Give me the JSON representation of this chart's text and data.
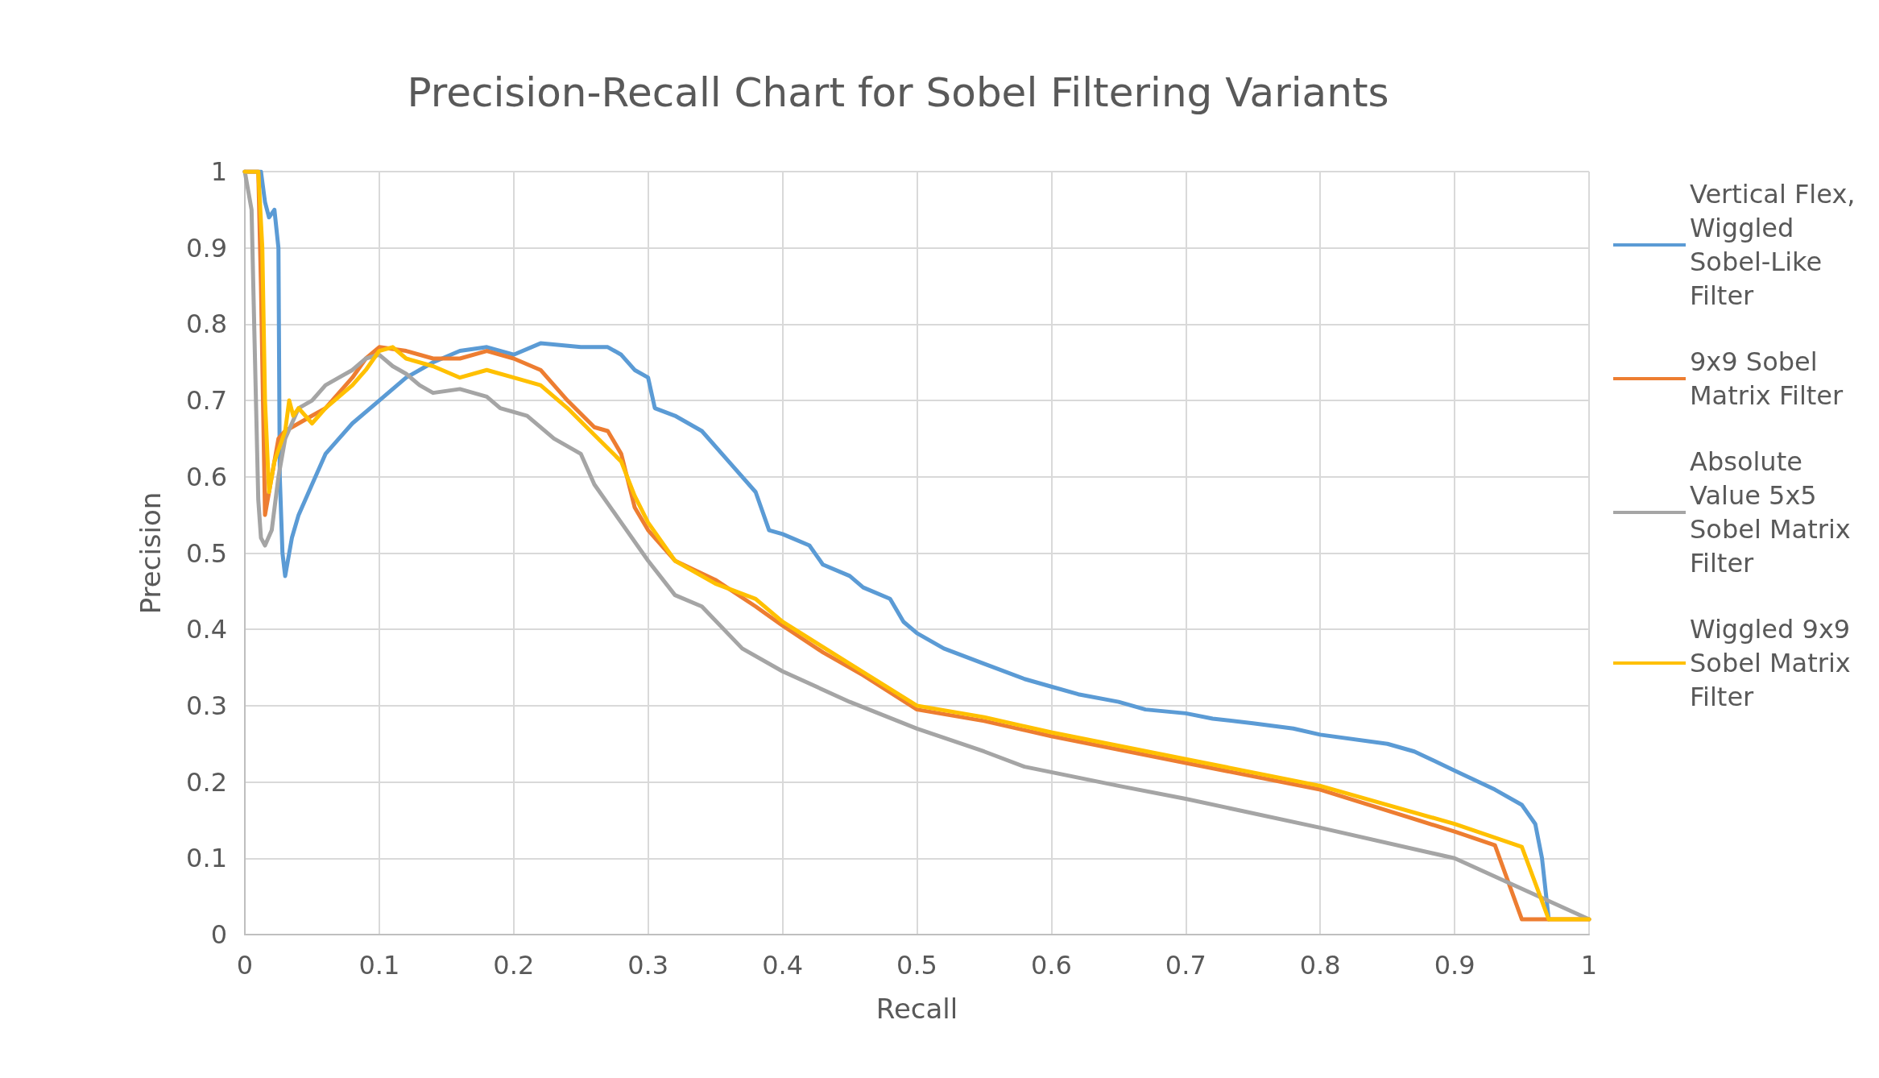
{
  "chart_data": {
    "type": "line",
    "title": "Precision-Recall Chart for Sobel Filtering Variants",
    "xlabel": "Recall",
    "ylabel": "Precision",
    "xlim": [
      0,
      1
    ],
    "xticks": [
      0,
      0.1,
      0.2,
      0.3,
      0.4,
      0.5,
      0.6,
      0.7,
      0.8,
      0.9,
      1
    ],
    "ylim": [
      0,
      1
    ],
    "yticks": [
      0,
      0.1,
      0.2,
      0.3,
      0.4,
      0.5,
      0.6,
      0.7,
      0.8,
      0.9,
      1
    ],
    "grid": true,
    "legend": "right",
    "marker": "none",
    "line_style": "solid",
    "series": [
      {
        "name": "Vertical Flex, Wiggled Sobel-Like Filter",
        "color": "#5b9bd5",
        "x": [
          0,
          0.012,
          0.015,
          0.018,
          0.022,
          0.025,
          0.026,
          0.028,
          0.03,
          0.035,
          0.04,
          0.05,
          0.06,
          0.07,
          0.08,
          0.1,
          0.12,
          0.14,
          0.16,
          0.18,
          0.2,
          0.22,
          0.25,
          0.27,
          0.28,
          0.29,
          0.3,
          0.305,
          0.32,
          0.34,
          0.36,
          0.38,
          0.39,
          0.4,
          0.42,
          0.43,
          0.45,
          0.46,
          0.48,
          0.49,
          0.5,
          0.52,
          0.55,
          0.58,
          0.6,
          0.62,
          0.65,
          0.67,
          0.7,
          0.72,
          0.75,
          0.78,
          0.8,
          0.85,
          0.87,
          0.9,
          0.93,
          0.95,
          0.96,
          0.965,
          0.97
        ],
        "values": [
          1,
          1,
          0.96,
          0.94,
          0.95,
          0.9,
          0.6,
          0.5,
          0.47,
          0.52,
          0.55,
          0.59,
          0.63,
          0.65,
          0.67,
          0.7,
          0.73,
          0.75,
          0.765,
          0.77,
          0.76,
          0.775,
          0.77,
          0.77,
          0.76,
          0.74,
          0.73,
          0.69,
          0.68,
          0.66,
          0.62,
          0.58,
          0.53,
          0.525,
          0.51,
          0.485,
          0.47,
          0.455,
          0.44,
          0.41,
          0.395,
          0.375,
          0.355,
          0.335,
          0.325,
          0.315,
          0.305,
          0.295,
          0.29,
          0.283,
          0.277,
          0.27,
          0.262,
          0.25,
          0.24,
          0.215,
          0.19,
          0.17,
          0.145,
          0.1,
          0.02
        ]
      },
      {
        "name": "9x9 Sobel Matrix Filter",
        "color": "#ed7d31",
        "x": [
          0,
          0.01,
          0.012,
          0.015,
          0.02,
          0.025,
          0.03,
          0.04,
          0.05,
          0.06,
          0.07,
          0.08,
          0.09,
          0.1,
          0.12,
          0.14,
          0.16,
          0.18,
          0.2,
          0.22,
          0.24,
          0.26,
          0.27,
          0.28,
          0.29,
          0.3,
          0.32,
          0.35,
          0.38,
          0.4,
          0.43,
          0.46,
          0.5,
          0.55,
          0.6,
          0.7,
          0.8,
          0.9,
          0.93,
          0.95,
          0.97,
          1
        ],
        "values": [
          1,
          1,
          0.85,
          0.55,
          0.6,
          0.65,
          0.66,
          0.67,
          0.68,
          0.69,
          0.71,
          0.73,
          0.755,
          0.77,
          0.765,
          0.755,
          0.755,
          0.765,
          0.755,
          0.74,
          0.7,
          0.665,
          0.66,
          0.63,
          0.56,
          0.53,
          0.49,
          0.465,
          0.43,
          0.405,
          0.37,
          0.34,
          0.295,
          0.28,
          0.26,
          0.225,
          0.19,
          0.135,
          0.117,
          0.02,
          0.02,
          0.02
        ]
      },
      {
        "name": "Absolute Value 5x5 Sobel Matrix Filter",
        "color": "#a5a5a5",
        "x": [
          0,
          0.005,
          0.008,
          0.01,
          0.012,
          0.015,
          0.02,
          0.025,
          0.03,
          0.04,
          0.05,
          0.06,
          0.07,
          0.08,
          0.09,
          0.1,
          0.11,
          0.12,
          0.13,
          0.14,
          0.16,
          0.18,
          0.19,
          0.21,
          0.23,
          0.25,
          0.26,
          0.28,
          0.3,
          0.32,
          0.34,
          0.37,
          0.4,
          0.45,
          0.5,
          0.55,
          0.58,
          0.65,
          0.7,
          0.8,
          0.9,
          1
        ],
        "values": [
          1,
          0.95,
          0.72,
          0.57,
          0.52,
          0.51,
          0.53,
          0.6,
          0.65,
          0.69,
          0.7,
          0.72,
          0.73,
          0.74,
          0.755,
          0.76,
          0.745,
          0.735,
          0.72,
          0.71,
          0.715,
          0.705,
          0.69,
          0.68,
          0.65,
          0.63,
          0.59,
          0.54,
          0.49,
          0.445,
          0.43,
          0.375,
          0.345,
          0.305,
          0.27,
          0.24,
          0.22,
          0.195,
          0.178,
          0.14,
          0.1,
          0.02
        ]
      },
      {
        "name": "Wiggled 9x9 Sobel Matrix Filter",
        "color": "#ffc000",
        "x": [
          0,
          0.01,
          0.013,
          0.015,
          0.018,
          0.022,
          0.03,
          0.033,
          0.036,
          0.04,
          0.05,
          0.06,
          0.08,
          0.09,
          0.1,
          0.11,
          0.12,
          0.14,
          0.16,
          0.18,
          0.2,
          0.22,
          0.24,
          0.26,
          0.28,
          0.29,
          0.3,
          0.32,
          0.35,
          0.38,
          0.4,
          0.45,
          0.5,
          0.55,
          0.6,
          0.7,
          0.8,
          0.9,
          0.95,
          0.97,
          1
        ],
        "values": [
          1,
          1,
          0.9,
          0.7,
          0.58,
          0.62,
          0.66,
          0.7,
          0.68,
          0.69,
          0.67,
          0.69,
          0.72,
          0.74,
          0.765,
          0.77,
          0.755,
          0.745,
          0.73,
          0.74,
          0.73,
          0.72,
          0.69,
          0.655,
          0.62,
          0.575,
          0.54,
          0.49,
          0.46,
          0.44,
          0.41,
          0.355,
          0.3,
          0.285,
          0.265,
          0.23,
          0.195,
          0.145,
          0.115,
          0.02,
          0.02
        ]
      }
    ]
  }
}
